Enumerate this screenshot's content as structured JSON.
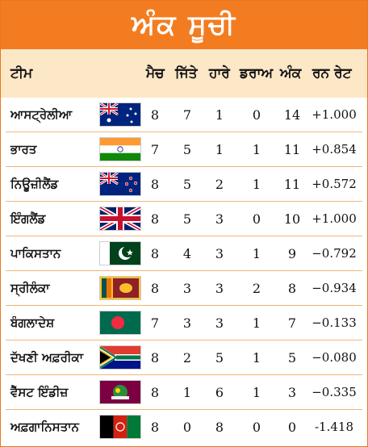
{
  "title": "ਅੰਕ ਸੂਚੀ",
  "headers": {
    "team": "ਟੀਮ",
    "played": "ਮੈਚ",
    "won": "ਜਿੱਤੇ",
    "lost": "ਹਾਰੇ",
    "draw": "ਡਰਾਅ",
    "points": "ਅੰਕ",
    "nrr": "ਰਨ ਰੇਟ"
  },
  "rows": [
    {
      "team": "ਆਸਟ੍ਰੇਲੀਆ",
      "flag": "australia-flag",
      "played": "8",
      "won": "7",
      "lost": "1",
      "draw": "0",
      "points": "14",
      "nrr": "+1.000"
    },
    {
      "team": "ਭਾਰਤ",
      "flag": "india-flag",
      "played": "7",
      "won": "5",
      "lost": "1",
      "draw": "1",
      "points": "11",
      "nrr": "+0.854"
    },
    {
      "team": "ਨਿਊਜ਼ੀਲੈਂਡ",
      "flag": "new-zealand-flag",
      "played": "8",
      "won": "5",
      "lost": "2",
      "draw": "1",
      "points": "11",
      "nrr": "+0.572"
    },
    {
      "team": "ਇੰਗਲੈਂਡ",
      "flag": "england-flag",
      "played": "8",
      "won": "5",
      "lost": "3",
      "draw": "0",
      "points": "10",
      "nrr": "+1.000"
    },
    {
      "team": "ਪਾਕਿਸਤਾਨ",
      "flag": "pakistan-flag",
      "played": "8",
      "won": "4",
      "lost": "3",
      "draw": "1",
      "points": "9",
      "nrr": "−0.792"
    },
    {
      "team": "ਸ੍ਰੀਲੰਕਾ",
      "flag": "sri-lanka-flag",
      "played": "8",
      "won": "3",
      "lost": "3",
      "draw": "2",
      "points": "8",
      "nrr": "−0.934"
    },
    {
      "team": "ਬੰਗਲਾਦੇਸ਼",
      "flag": "bangladesh-flag",
      "played": "7",
      "won": "3",
      "lost": "3",
      "draw": "1",
      "points": "7",
      "nrr": "−0.133"
    },
    {
      "team": "ਦੱਖਣੀ ਅਫ਼ਰੀਕਾ",
      "flag": "south-africa-flag",
      "played": "8",
      "won": "2",
      "lost": "5",
      "draw": "1",
      "points": "5",
      "nrr": "−0.080"
    },
    {
      "team": "ਵੈੱਸਟ ਇੰਡੀਜ਼",
      "flag": "west-indies-flag",
      "played": "8",
      "won": "1",
      "lost": "6",
      "draw": "1",
      "points": "3",
      "nrr": "−0.335"
    },
    {
      "team": "ਅਫ਼ਗਾਨਿਸਤਾਨ",
      "flag": "afghanistan-flag",
      "played": "8",
      "won": "0",
      "lost": "8",
      "draw": "0",
      "points": "0",
      "nrr": "-1.418"
    }
  ]
}
